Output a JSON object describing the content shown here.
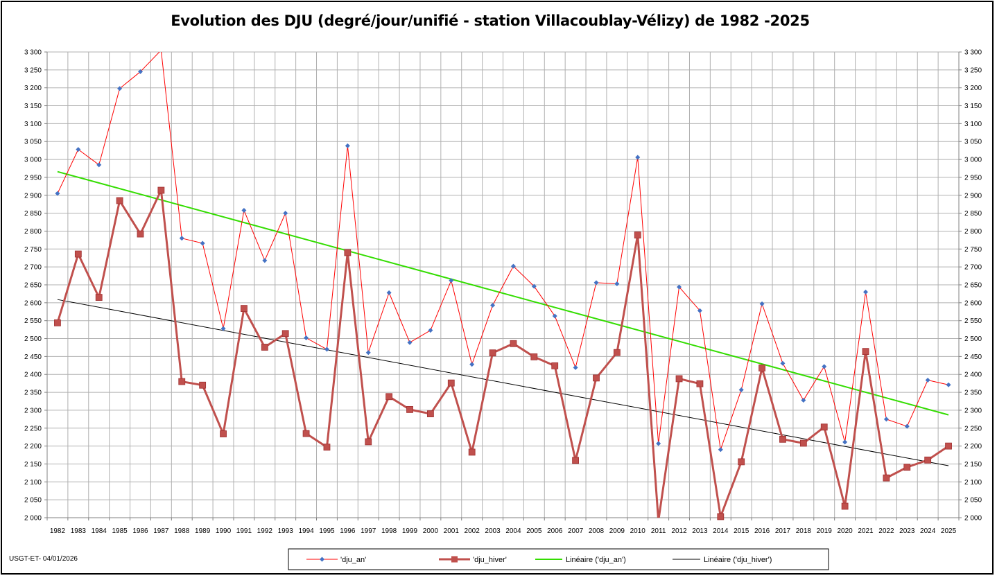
{
  "chart_data": {
    "type": "line",
    "title": "Evolution des DJU (degré/jour/unifié - station Villacoublay-Vélizy) de 1982 -2025",
    "xlabel": "",
    "ylabel": "",
    "ylim": [
      2000,
      3300
    ],
    "ytick_step": 50,
    "grid": true,
    "secondary_y_axis": true,
    "legend_position": "bottom",
    "categories": [
      "1982",
      "1983",
      "1984",
      "1985",
      "1986",
      "1987",
      "1988",
      "1989",
      "1990",
      "1991",
      "1992",
      "1993",
      "1994",
      "1995",
      "1996",
      "1997",
      "1998",
      "1999",
      "2000",
      "2001",
      "2002",
      "2003",
      "2004",
      "2005",
      "2006",
      "2007",
      "2008",
      "2009",
      "2010",
      "2011",
      "2012",
      "2013",
      "2014",
      "2015",
      "2016",
      "2017",
      "2018",
      "2019",
      "2020",
      "2021",
      "2022",
      "2023",
      "2024",
      "2025"
    ],
    "series": [
      {
        "name": "'dju_an'",
        "color": "#ff0000",
        "marker": "diamond",
        "marker_color": "#4472c4",
        "values": [
          2905,
          3028,
          2985,
          3198,
          3245,
          3305,
          2780,
          2766,
          2528,
          2858,
          2718,
          2850,
          2502,
          2470,
          3038,
          2461,
          2628,
          2489,
          2523,
          2662,
          2428,
          2593,
          2702,
          2646,
          2563,
          2419,
          2656,
          2653,
          3006,
          2207,
          2644,
          2578,
          2190,
          2357,
          2597,
          2431,
          2328,
          2422,
          2211,
          2630,
          2275,
          2255,
          2384,
          2371
        ]
      },
      {
        "name": "'dju_hiver'",
        "color": "#c0504d",
        "marker": "square",
        "marker_color": "#c0504d",
        "values": [
          2544,
          2736,
          2615,
          2885,
          2792,
          2914,
          2380,
          2370,
          2234,
          2584,
          2476,
          2514,
          2235,
          2197,
          2740,
          2212,
          2338,
          2302,
          2290,
          2376,
          2183,
          2460,
          2486,
          2449,
          2424,
          2160,
          2390,
          2461,
          2789,
          1992,
          2388,
          2374,
          2003,
          2156,
          2418,
          2219,
          2208,
          2253,
          2032,
          2464,
          2111,
          2141,
          2161,
          2200
        ]
      }
    ],
    "trendlines": [
      {
        "name": "Linéaire ('dju_an')",
        "of": "'dju_an'",
        "color": "#33dd00",
        "start": 2966,
        "end": 2287
      },
      {
        "name": "Linéaire ('dju_hiver')",
        "of": "'dju_hiver'",
        "color": "#000000",
        "start": 2609,
        "end": 2145
      }
    ]
  },
  "footer": "USGT-ET-  04/01/2026"
}
